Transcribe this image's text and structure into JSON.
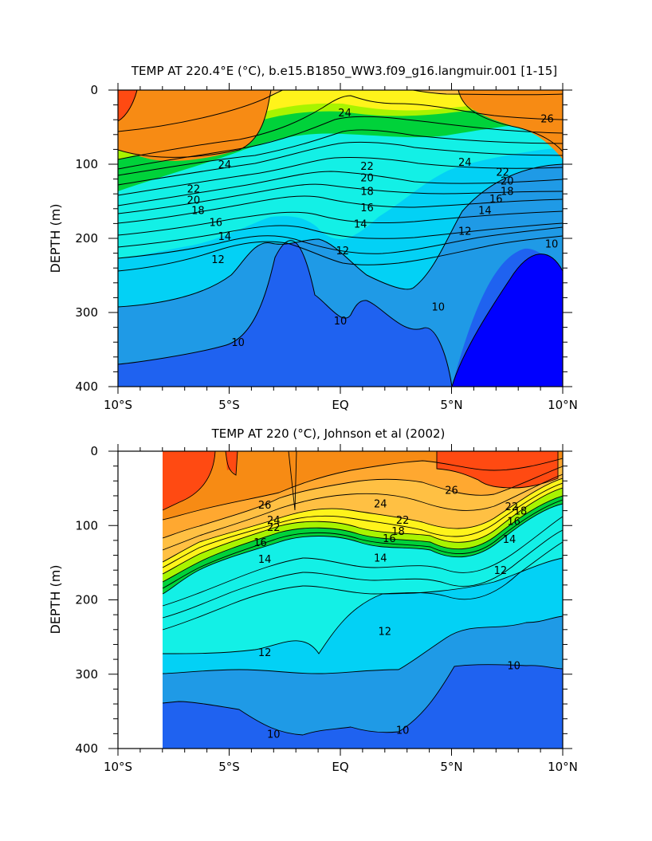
{
  "colors": {
    "lt8": "#0000ff",
    "8_10": "#1f62f0",
    "10_12": "#1f9ae6",
    "12_14": "#03d1f5",
    "14_16": "#13f0e6",
    "16_18": "#00d23a",
    "18_20": "#a8f400",
    "20_22": "#fff31b",
    "22_24": "#ffc043",
    "24_26": "#ffa830",
    "26_28": "#f78b14",
    "gt28": "#ff4a12"
  },
  "chart_data": [
    {
      "type": "contour",
      "title": "TEMP AT 220.4°E (°C), b.e15.B1850_WW3.f09_g16.langmuir.001 [1-15]",
      "ylabel": "DEPTH (m)",
      "xlabel": "",
      "xlim": [
        -10,
        10
      ],
      "ylim": [
        400,
        0
      ],
      "x_ticks": [
        -10,
        -5,
        0,
        5,
        10
      ],
      "x_tick_labels": [
        "10°S",
        "5°S",
        "EQ",
        "5°N",
        "10°N"
      ],
      "y_ticks": [
        0,
        100,
        200,
        300,
        400
      ],
      "y_tick_labels": [
        "0",
        "100",
        "200",
        "300",
        "400"
      ],
      "contour_interval": 1,
      "contour_labels": [
        {
          "text": "24",
          "lat": 0.2,
          "depth": 30
        },
        {
          "text": "26",
          "lat": 9.3,
          "depth": 38
        },
        {
          "text": "24",
          "lat": -5.2,
          "depth": 100
        },
        {
          "text": "24",
          "lat": 5.6,
          "depth": 97
        },
        {
          "text": "22",
          "lat": -6.6,
          "depth": 133
        },
        {
          "text": "22",
          "lat": 1.2,
          "depth": 102
        },
        {
          "text": "22",
          "lat": 7.3,
          "depth": 110
        },
        {
          "text": "20",
          "lat": -6.6,
          "depth": 148
        },
        {
          "text": "20",
          "lat": 1.2,
          "depth": 118
        },
        {
          "text": "20",
          "lat": 7.5,
          "depth": 122
        },
        {
          "text": "18",
          "lat": -6.4,
          "depth": 162
        },
        {
          "text": "18",
          "lat": 1.2,
          "depth": 136
        },
        {
          "text": "18",
          "lat": 7.5,
          "depth": 136
        },
        {
          "text": "16",
          "lat": -5.6,
          "depth": 178
        },
        {
          "text": "16",
          "lat": 1.2,
          "depth": 158
        },
        {
          "text": "16",
          "lat": 7.0,
          "depth": 146
        },
        {
          "text": "14",
          "lat": -5.2,
          "depth": 197
        },
        {
          "text": "14",
          "lat": 0.9,
          "depth": 180
        },
        {
          "text": "14",
          "lat": 6.5,
          "depth": 162
        },
        {
          "text": "12",
          "lat": -5.5,
          "depth": 228
        },
        {
          "text": "12",
          "lat": 0.1,
          "depth": 216
        },
        {
          "text": "12",
          "lat": 5.6,
          "depth": 190
        },
        {
          "text": "10",
          "lat": 9.5,
          "depth": 207
        },
        {
          "text": "10",
          "lat": 4.4,
          "depth": 292
        },
        {
          "text": "10",
          "lat": 0.0,
          "depth": 311
        },
        {
          "text": "10",
          "lat": -4.6,
          "depth": 340
        }
      ]
    },
    {
      "type": "contour",
      "title": "TEMP AT 220 (°C), Johnson et al (2002)",
      "ylabel": "DEPTH (m)",
      "xlabel": "",
      "xlim": [
        -10,
        10
      ],
      "ylim": [
        400,
        0
      ],
      "data_xlim": [
        -8,
        10
      ],
      "x_ticks": [
        -10,
        -5,
        0,
        5,
        10
      ],
      "x_tick_labels": [
        "10°S",
        "5°S",
        "EQ",
        "5°N",
        "10°N"
      ],
      "y_ticks": [
        0,
        100,
        200,
        300,
        400
      ],
      "y_tick_labels": [
        "0",
        "100",
        "200",
        "300",
        "400"
      ],
      "contour_interval": 1,
      "contour_labels": [
        {
          "text": "26",
          "lat": 5.0,
          "depth": 52
        },
        {
          "text": "26",
          "lat": -3.4,
          "depth": 72
        },
        {
          "text": "24",
          "lat": 1.8,
          "depth": 70
        },
        {
          "text": "24",
          "lat": -3.0,
          "depth": 92
        },
        {
          "text": "22",
          "lat": 2.8,
          "depth": 92
        },
        {
          "text": "22",
          "lat": -3.0,
          "depth": 102
        },
        {
          "text": "22",
          "lat": 7.7,
          "depth": 74
        },
        {
          "text": "18",
          "lat": 2.6,
          "depth": 107
        },
        {
          "text": "18",
          "lat": 8.1,
          "depth": 80
        },
        {
          "text": "16",
          "lat": 2.2,
          "depth": 117
        },
        {
          "text": "16",
          "lat": -3.6,
          "depth": 122
        },
        {
          "text": "16",
          "lat": 7.8,
          "depth": 94
        },
        {
          "text": "14",
          "lat": 1.8,
          "depth": 143
        },
        {
          "text": "14",
          "lat": -3.4,
          "depth": 145
        },
        {
          "text": "14",
          "lat": 7.6,
          "depth": 118
        },
        {
          "text": "12",
          "lat": 7.2,
          "depth": 160
        },
        {
          "text": "12",
          "lat": 2.0,
          "depth": 242
        },
        {
          "text": "12",
          "lat": -3.4,
          "depth": 270
        },
        {
          "text": "10",
          "lat": 7.8,
          "depth": 288
        },
        {
          "text": "10",
          "lat": 2.8,
          "depth": 375
        },
        {
          "text": "10",
          "lat": -3.0,
          "depth": 380
        }
      ]
    }
  ]
}
